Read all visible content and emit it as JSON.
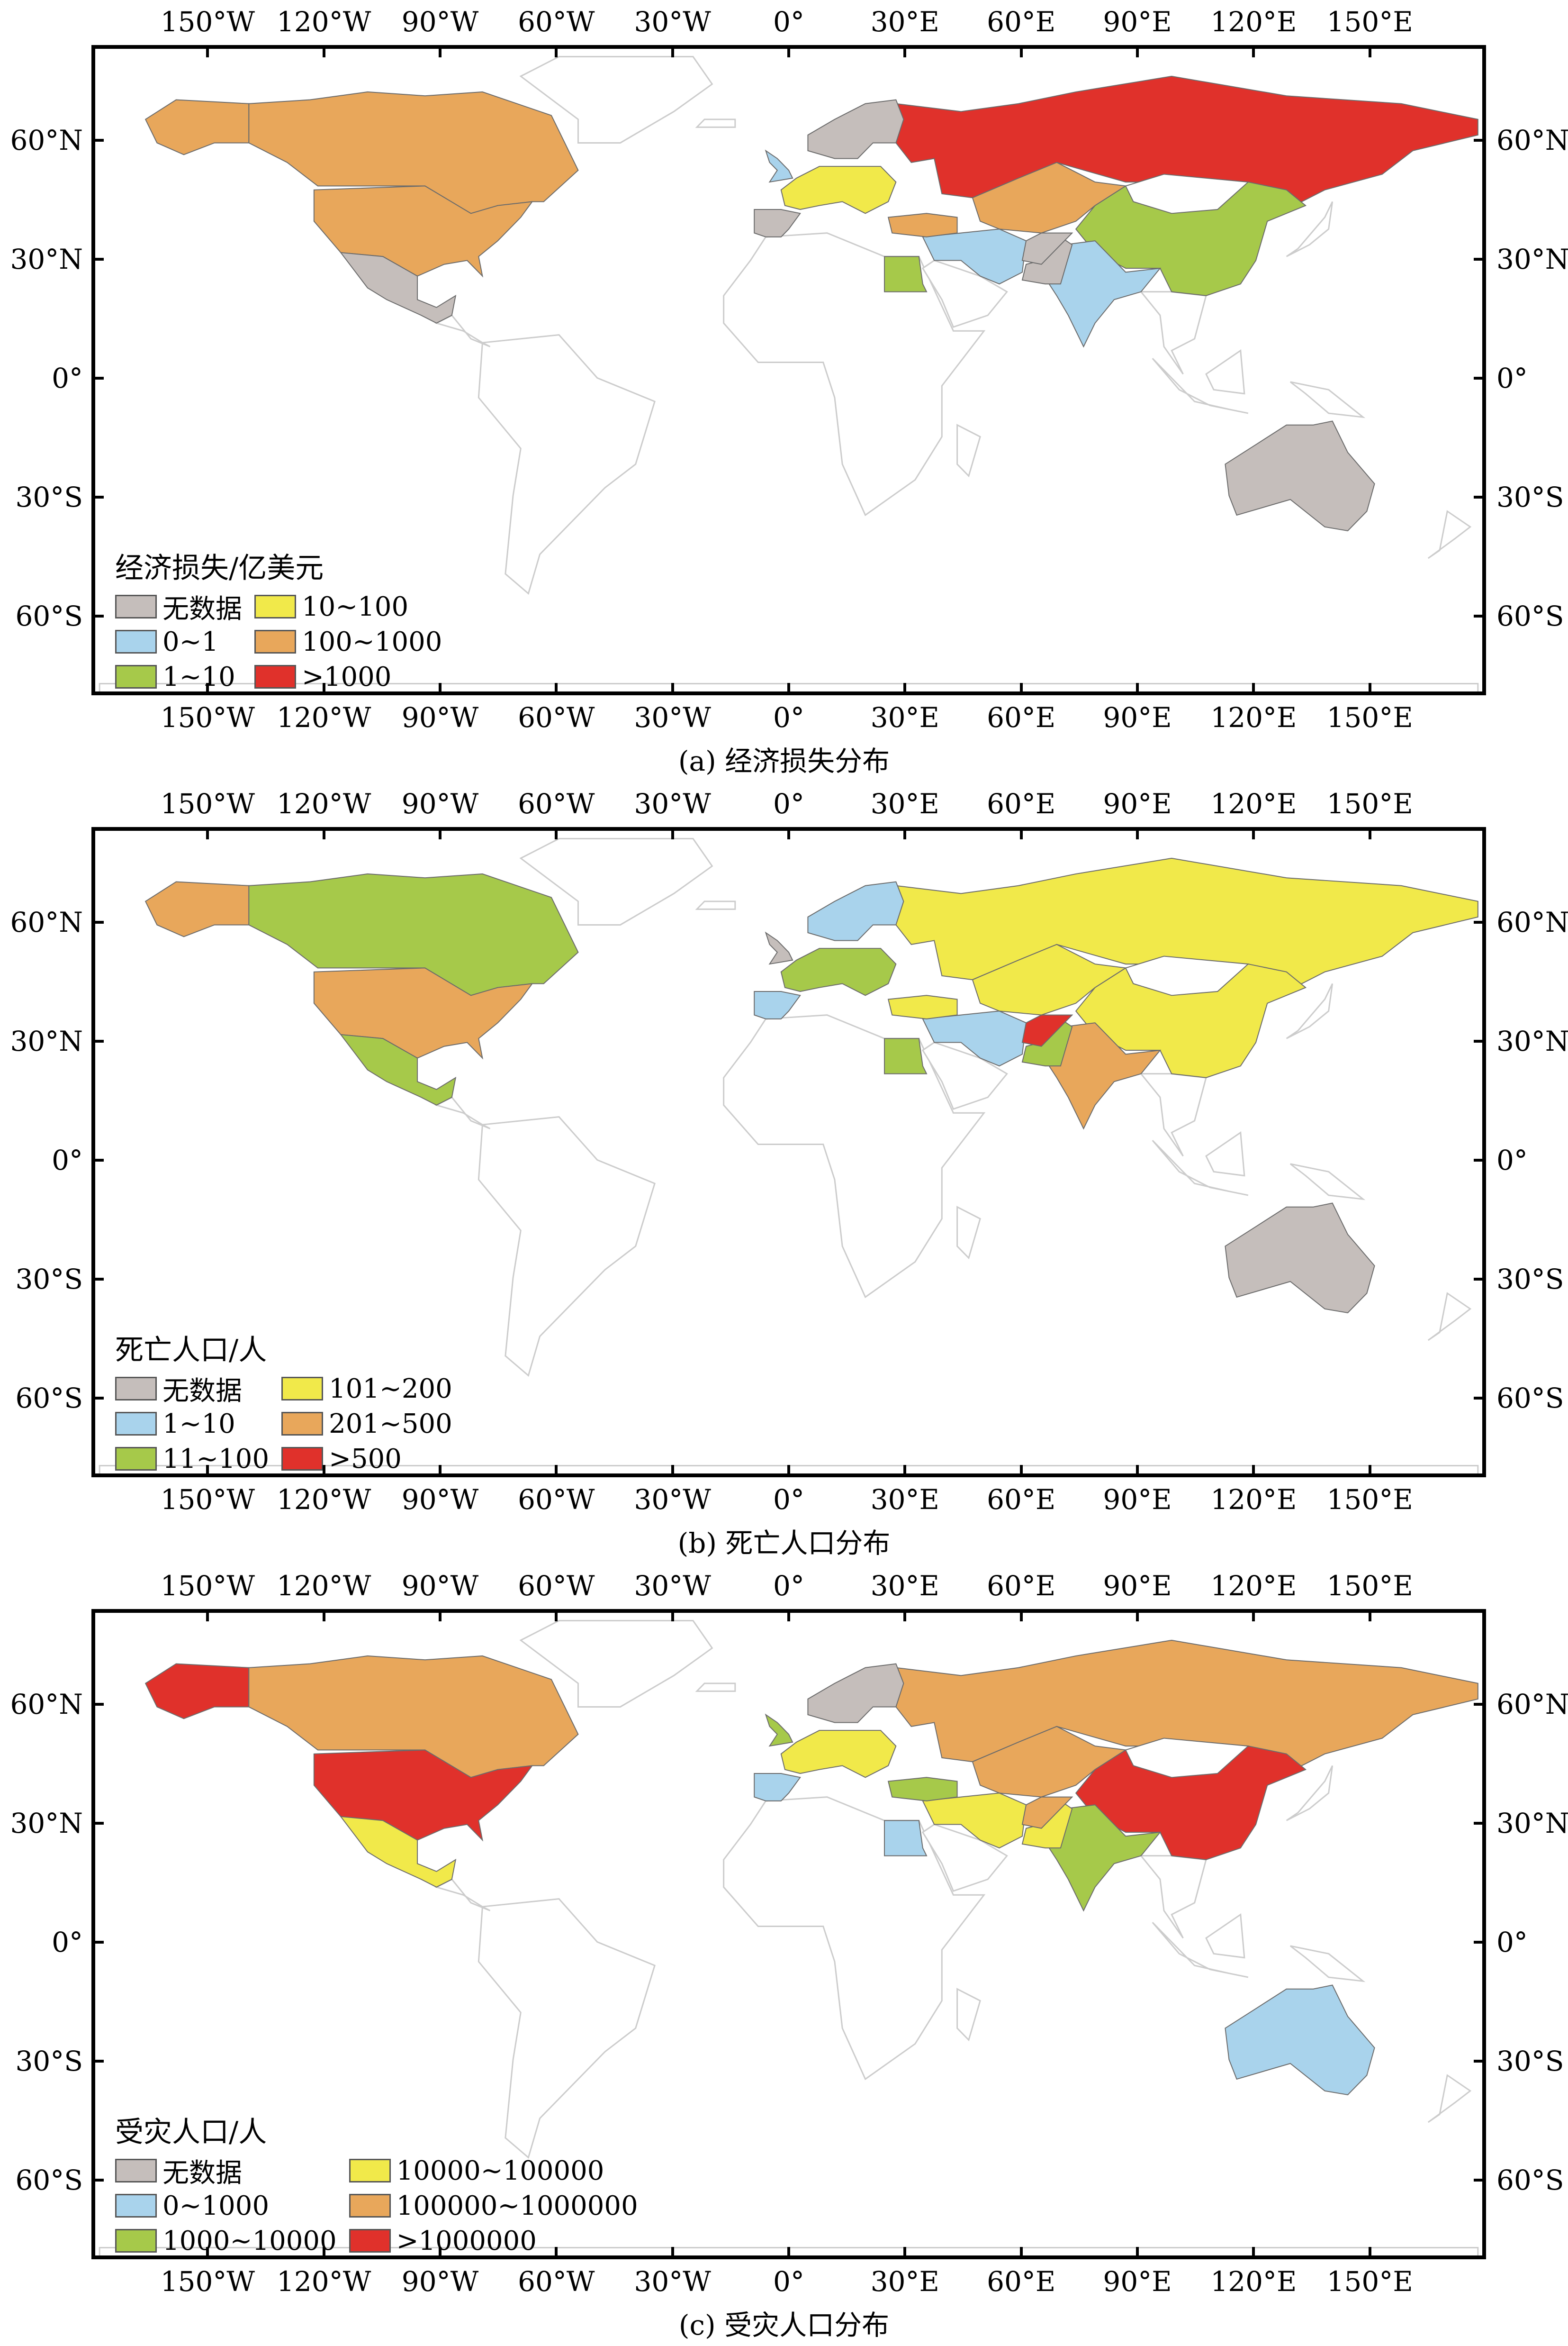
{
  "axes": {
    "lon_labels": [
      "150°W",
      "120°W",
      "90°W",
      "60°W",
      "30°W",
      "0°",
      "30°E",
      "60°E",
      "90°E",
      "120°E",
      "150°E"
    ],
    "lat_labels": [
      "60°N",
      "30°N",
      "0°",
      "30°S",
      "60°S"
    ]
  },
  "colors": {
    "no_data": "#c5bebb",
    "cls1": "#a9d3ec",
    "cls2": "#a6c94a",
    "cls3": "#f1e94a",
    "cls4": "#e8a75b",
    "cls5": "#e0312b",
    "land": "#ffffff",
    "border": "#cccccc"
  },
  "panels": [
    {
      "caption": "(a) 经济损失分布",
      "legend": {
        "title": "经济损失/亿美元",
        "items": [
          {
            "label": "无数据",
            "color": "#c5bebb"
          },
          {
            "label": "10~100",
            "color": "#f1e94a"
          },
          {
            "label": "0~1",
            "color": "#a9d3ec"
          },
          {
            "label": "100~1000",
            "color": "#e8a75b"
          },
          {
            "label": "1~10",
            "color": "#a6c94a"
          },
          {
            "label": ">1000",
            "color": "#e0312b"
          }
        ]
      },
      "regions": {
        "alaska": "cls4",
        "canada": "cls4",
        "usa": "cls4",
        "mexico": "no_data",
        "russia": "cls5",
        "china": "cls2",
        "india": "cls1",
        "australia": "no_data",
        "scandinavia": "no_data",
        "western_europe": "cls3",
        "iberia": "no_data",
        "uk": "cls1",
        "central_asia": "cls4",
        "middle_east": "cls1",
        "egypt": "cls2",
        "turkey": "cls4",
        "pakistan": "no_data",
        "afghanistan": "no_data"
      }
    },
    {
      "caption": "(b) 死亡人口分布",
      "legend": {
        "title": "死亡人口/人",
        "items": [
          {
            "label": "无数据",
            "color": "#c5bebb"
          },
          {
            "label": "101~200",
            "color": "#f1e94a"
          },
          {
            "label": "1~10",
            "color": "#a9d3ec"
          },
          {
            "label": "201~500",
            "color": "#e8a75b"
          },
          {
            "label": "11~100",
            "color": "#a6c94a"
          },
          {
            "label": ">500",
            "color": "#e0312b"
          }
        ]
      },
      "regions": {
        "alaska": "cls4",
        "canada": "cls2",
        "usa": "cls4",
        "mexico": "cls2",
        "russia": "cls3",
        "china": "cls3",
        "india": "cls4",
        "australia": "no_data",
        "scandinavia": "cls1",
        "western_europe": "cls2",
        "iberia": "cls1",
        "uk": "no_data",
        "central_asia": "cls3",
        "middle_east": "cls1",
        "egypt": "cls2",
        "turkey": "cls3",
        "pakistan": "cls2",
        "afghanistan": "cls5"
      }
    },
    {
      "caption": "(c) 受灾人口分布",
      "legend": {
        "title": "受灾人口/人",
        "items": [
          {
            "label": "无数据",
            "color": "#c5bebb"
          },
          {
            "label": "10000~100000",
            "color": "#f1e94a"
          },
          {
            "label": "0~1000",
            "color": "#a9d3ec"
          },
          {
            "label": "100000~1000000",
            "color": "#e8a75b"
          },
          {
            "label": "1000~10000",
            "color": "#a6c94a"
          },
          {
            "label": ">1000000",
            "color": "#e0312b"
          }
        ]
      },
      "regions": {
        "alaska": "cls5",
        "canada": "cls4",
        "usa": "cls5",
        "mexico": "cls3",
        "russia": "cls4",
        "china": "cls5",
        "india": "cls2",
        "australia": "cls1",
        "scandinavia": "no_data",
        "western_europe": "cls3",
        "iberia": "cls1",
        "uk": "cls2",
        "central_asia": "cls4",
        "middle_east": "cls3",
        "egypt": "cls1",
        "turkey": "cls2",
        "pakistan": "cls3",
        "afghanistan": "cls4"
      }
    }
  ]
}
